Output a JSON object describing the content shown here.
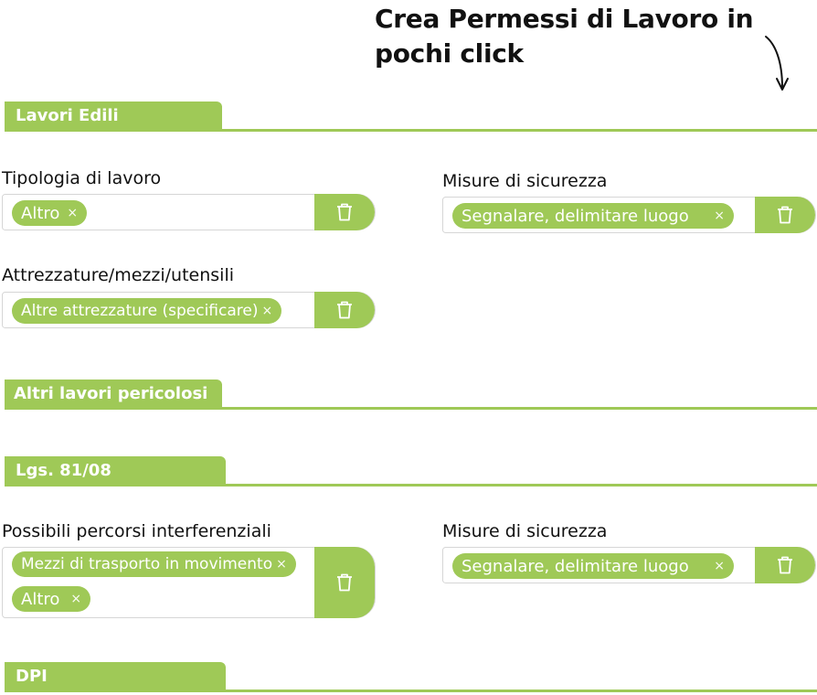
{
  "headline": "Crea Permessi di Lavoro in pochi click",
  "sections": {
    "lavori_edili": "Lavori Edili",
    "altri_lavori": "Altri lavori pericolosi",
    "lgs": "Lgs. 81/08",
    "dpi": "DPI"
  },
  "lavori_edili": {
    "tipologia_label": "Tipologia di lavoro",
    "tipologia_chips": [
      "Altro"
    ],
    "misure_label": "Misure di sicurezza",
    "misure_chips": [
      "Segnalare, delimitare luogo"
    ],
    "attrezzature_label": "Attrezzature/mezzi/utensili",
    "attrezzature_chips": [
      "Altre attrezzature (specificare)"
    ]
  },
  "lgs": {
    "percorsi_label": "Possibili percorsi interferenziali",
    "percorsi_chips": [
      "Mezzi di trasporto in movimento",
      "Altro"
    ],
    "misure_label": "Misure di sicurezza",
    "misure_chips": [
      "Segnalare, delimitare luogo"
    ]
  },
  "chip_remove_symbol": "×",
  "icons": {
    "arrow": "curved-arrow-down-icon",
    "trash": "trash-icon",
    "remove": "close-icon"
  },
  "colors": {
    "accent": "#9fc957",
    "text": "#111111",
    "border": "#d6d6d6"
  }
}
